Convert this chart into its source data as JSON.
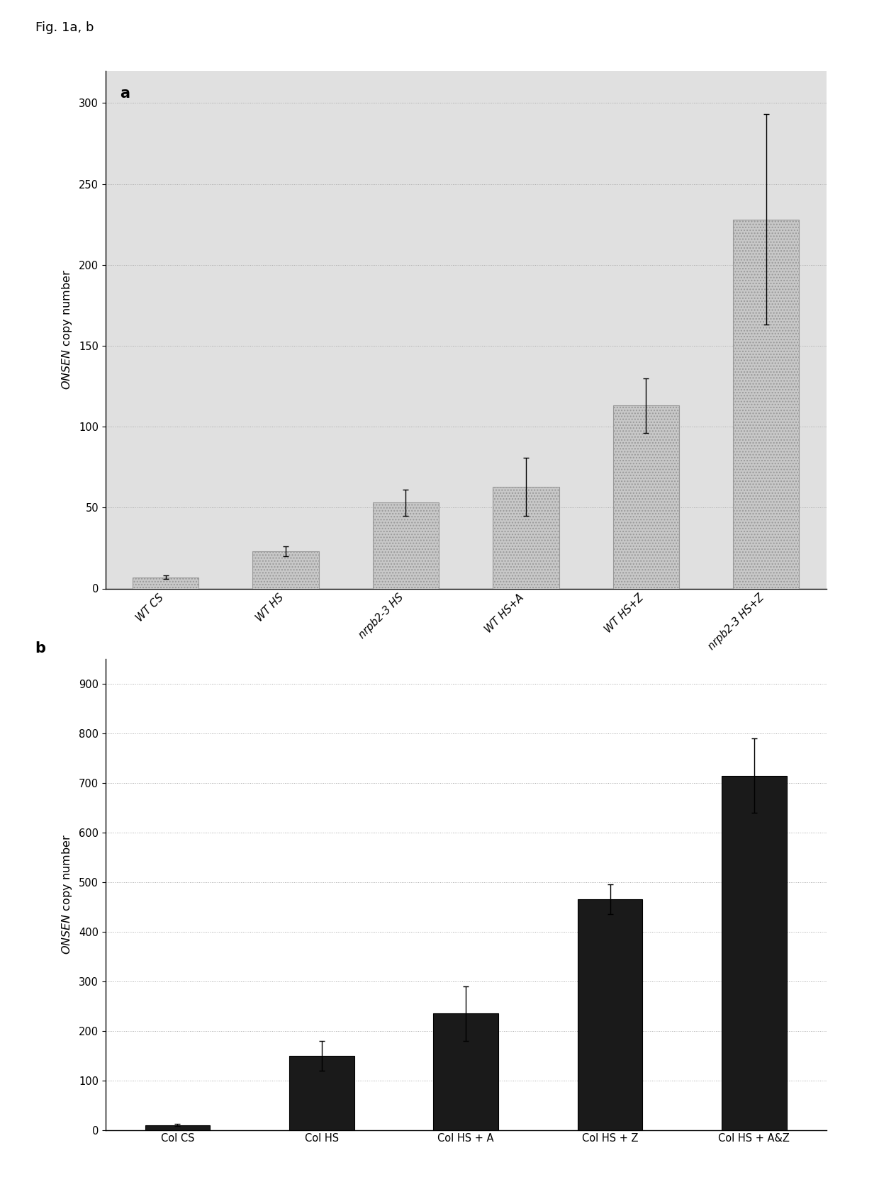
{
  "fig_label": "Fig. 1a, b",
  "panel_a": {
    "label": "a",
    "categories": [
      "WT CS",
      "WT HS",
      "nrpb2-3 HS",
      "WT HS+A",
      "WT HS+Z",
      "nrpb2-3 HS+Z"
    ],
    "values": [
      7,
      23,
      53,
      63,
      113,
      228
    ],
    "errors": [
      1,
      3,
      8,
      18,
      17,
      65
    ],
    "bar_color": "#c8c8c8",
    "bar_edgecolor": "#999999",
    "ylabel": "ONSEN copy number",
    "ylim": [
      0,
      320
    ],
    "yticks": [
      0,
      50,
      100,
      150,
      200,
      250,
      300
    ],
    "grid_color": "#aaaaaa",
    "bg_color": "#e0e0e0",
    "hatch": "....",
    "ylabel_italic": "ONSEN"
  },
  "panel_b": {
    "label": "b",
    "categories": [
      "Col CS",
      "Col HS",
      "Col HS + A",
      "Col HS + Z",
      "Col HS + A&Z"
    ],
    "values": [
      10,
      150,
      235,
      465,
      715
    ],
    "errors": [
      2,
      30,
      55,
      30,
      75
    ],
    "bar_color": "#1a1a1a",
    "bar_edgecolor": "#000000",
    "ylabel": "ONSEN copy number",
    "ylim": [
      0,
      950
    ],
    "yticks": [
      0,
      100,
      200,
      300,
      400,
      500,
      600,
      700,
      800,
      900
    ],
    "grid_color": "#aaaaaa",
    "ylabel_italic": "ONSEN"
  }
}
